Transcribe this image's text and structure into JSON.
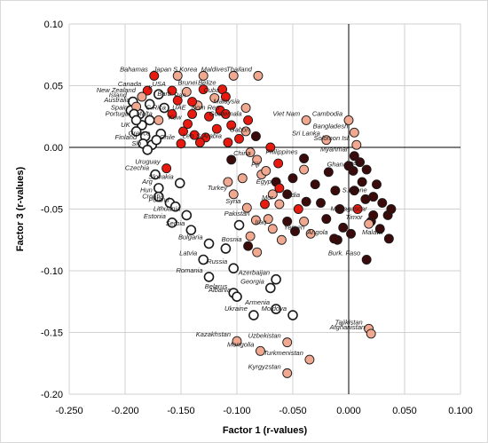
{
  "chart_data": {
    "type": "scatter",
    "xlabel": "Factor 1 (r-values)",
    "ylabel": "Factor 3 (r-values)",
    "xlim": [
      -0.25,
      0.1
    ],
    "ylim": [
      -0.2,
      0.1
    ],
    "x_ticks": [
      "-0.250",
      "-0.200",
      "-0.150",
      "-0.100",
      "-0.050",
      "0.000",
      "0.050",
      "0.100"
    ],
    "y_ticks": [
      "0.10",
      "0.05",
      "0.00",
      "-0.05",
      "-0.10",
      "-0.15",
      "-0.20"
    ],
    "grid": true,
    "colors": {
      "open": "#ffffff",
      "red": "#e8190f",
      "pink": "#f0a990",
      "dark": "#3b0a0a",
      "edge": "#1a1a1a"
    },
    "labeled_points": [
      {
        "label": "Bahamas",
        "x": -0.174,
        "y": 0.058,
        "style": "red"
      },
      {
        "label": "Japan",
        "x": -0.153,
        "y": 0.058,
        "style": "pink"
      },
      {
        "label": "S.Korea",
        "x": -0.13,
        "y": 0.058,
        "style": "pink"
      },
      {
        "label": "Maldives",
        "x": -0.103,
        "y": 0.058,
        "style": "pink"
      },
      {
        "label": "Thailand",
        "x": -0.081,
        "y": 0.058,
        "style": "pink"
      },
      {
        "label": "Canada",
        "x": -0.18,
        "y": 0.046,
        "style": "red"
      },
      {
        "label": "USA",
        "x": -0.158,
        "y": 0.046,
        "style": "red"
      },
      {
        "label": "Brunei",
        "x": -0.13,
        "y": 0.047,
        "style": "red"
      },
      {
        "label": "Belize",
        "x": -0.113,
        "y": 0.047,
        "style": "red"
      },
      {
        "label": "Cuba",
        "x": -0.11,
        "y": 0.041,
        "style": "red"
      },
      {
        "label": "New Zealand",
        "x": -0.185,
        "y": 0.041,
        "style": "pink"
      },
      {
        "label": "Island",
        "x": -0.193,
        "y": 0.037,
        "style": "open"
      },
      {
        "label": "Ir",
        "x": -0.17,
        "y": 0.043,
        "style": "open"
      },
      {
        "label": "Barb",
        "x": -0.153,
        "y": 0.038,
        "style": "red"
      },
      {
        "label": "Pan",
        "x": -0.14,
        "y": 0.037,
        "style": "red"
      },
      {
        "label": "Australia",
        "x": -0.19,
        "y": 0.033,
        "style": "pink"
      },
      {
        "label": "Malaysia",
        "x": -0.092,
        "y": 0.032,
        "style": "pink"
      },
      {
        "label": "Spain",
        "x": -0.192,
        "y": 0.027,
        "style": "open"
      },
      {
        "label": "C.Rica",
        "x": -0.158,
        "y": 0.027,
        "style": "red"
      },
      {
        "label": "UAE",
        "x": -0.14,
        "y": 0.027,
        "style": "red"
      },
      {
        "label": "Dom Rep",
        "x": -0.11,
        "y": 0.027,
        "style": "red"
      },
      {
        "label": "Portugal",
        "x": -0.19,
        "y": 0.022,
        "style": "open"
      },
      {
        "label": "Malta",
        "x": -0.17,
        "y": 0.022,
        "style": "pink"
      },
      {
        "label": "Guatemala",
        "x": -0.09,
        "y": 0.022,
        "style": "red"
      },
      {
        "label": "Viet Nam",
        "x": -0.038,
        "y": 0.022,
        "style": "pink"
      },
      {
        "label": "Cambodia",
        "x": 0.0,
        "y": 0.022,
        "style": "pink"
      },
      {
        "label": "Kuw",
        "x": -0.144,
        "y": 0.019,
        "style": "red"
      },
      {
        "label": "UK",
        "x": -0.19,
        "y": 0.013,
        "style": "open"
      },
      {
        "label": "Gabon",
        "x": -0.083,
        "y": 0.009,
        "style": "dark"
      },
      {
        "label": "Bangladesh",
        "x": 0.005,
        "y": 0.012,
        "style": "pink"
      },
      {
        "label": "Greece",
        "x": -0.172,
        "y": 0.006,
        "style": "open"
      },
      {
        "label": "Sri Lanka",
        "x": -0.02,
        "y": 0.006,
        "style": "pink"
      },
      {
        "label": "Solomon Isl.",
        "x": 0.007,
        "y": 0.002,
        "style": "pink"
      },
      {
        "label": "Finland",
        "x": -0.184,
        "y": 0.003,
        "style": "open"
      },
      {
        "label": "Chile",
        "x": -0.15,
        "y": 0.003,
        "style": "red"
      },
      {
        "label": "Leb",
        "x": -0.133,
        "y": 0.004,
        "style": "red"
      },
      {
        "label": "S.Arabia",
        "x": -0.108,
        "y": 0.004,
        "style": "red"
      },
      {
        "label": "Slo",
        "x": -0.18,
        "y": -0.002,
        "style": "open"
      },
      {
        "label": "Myanmar",
        "x": 0.005,
        "y": -0.007,
        "style": "dark"
      },
      {
        "label": "Philippines",
        "x": -0.04,
        "y": -0.009,
        "style": "dark"
      },
      {
        "label": "China",
        "x": -0.082,
        "y": -0.01,
        "style": "pink"
      },
      {
        "label": "Uruguay",
        "x": -0.163,
        "y": -0.017,
        "style": "red"
      },
      {
        "label": "Ghana",
        "x": 0.004,
        "y": -0.019,
        "style": "dark"
      },
      {
        "label": "Laos",
        "x": 0.016,
        "y": -0.018,
        "style": "dark"
      },
      {
        "label": "Fiji",
        "x": -0.074,
        "y": -0.019,
        "style": "pink"
      },
      {
        "label": "Czechia",
        "x": -0.173,
        "y": -0.022,
        "style": "open"
      },
      {
        "label": "Slovakia",
        "x": -0.151,
        "y": -0.029,
        "style": "open"
      },
      {
        "label": "Arg",
        "x": -0.17,
        "y": -0.033,
        "style": "open"
      },
      {
        "label": "Egypt",
        "x": -0.062,
        "y": -0.033,
        "style": "red"
      },
      {
        "label": "S.Leone",
        "x": 0.022,
        "y": -0.04,
        "style": "dark"
      },
      {
        "label": "Turkey",
        "x": -0.103,
        "y": -0.038,
        "style": "pink"
      },
      {
        "label": "Hun",
        "x": -0.17,
        "y": -0.04,
        "style": "open"
      },
      {
        "label": "Croatia",
        "x": -0.16,
        "y": -0.045,
        "style": "open"
      },
      {
        "label": "Poland",
        "x": -0.155,
        "y": -0.048,
        "style": "open"
      },
      {
        "label": "India",
        "x": -0.038,
        "y": -0.044,
        "style": "dark"
      },
      {
        "label": "Mor",
        "x": -0.062,
        "y": -0.046,
        "style": "pink"
      },
      {
        "label": "Syria",
        "x": -0.091,
        "y": -0.049,
        "style": "pink"
      },
      {
        "label": "Madagascar",
        "x": 0.022,
        "y": -0.055,
        "style": "dark"
      },
      {
        "label": "Lithuania",
        "x": -0.145,
        "y": -0.055,
        "style": "open"
      },
      {
        "label": "Pakistan",
        "x": -0.083,
        "y": -0.059,
        "style": "pink"
      },
      {
        "label": "Timor",
        "x": 0.018,
        "y": -0.062,
        "style": "pink"
      },
      {
        "label": "Estonia",
        "x": -0.158,
        "y": -0.061,
        "style": "open"
      },
      {
        "label": "Serbia",
        "x": -0.141,
        "y": -0.067,
        "style": "open"
      },
      {
        "label": "Iraq",
        "x": -0.068,
        "y": -0.066,
        "style": "pink"
      },
      {
        "label": "Yemen",
        "x": -0.034,
        "y": -0.07,
        "style": "pink"
      },
      {
        "label": "Angola",
        "x": -0.013,
        "y": -0.074,
        "style": "dark"
      },
      {
        "label": "Bulgaria",
        "x": -0.125,
        "y": -0.078,
        "style": "open"
      },
      {
        "label": "Malawi",
        "x": 0.036,
        "y": -0.074,
        "style": "dark"
      },
      {
        "label": "Bosnia",
        "x": -0.09,
        "y": -0.08,
        "style": "dark"
      },
      {
        "label": "Latvia",
        "x": -0.13,
        "y": -0.091,
        "style": "open"
      },
      {
        "label": "Burk. Faso",
        "x": 0.016,
        "y": -0.091,
        "style": "dark"
      },
      {
        "label": "Russia",
        "x": -0.103,
        "y": -0.098,
        "style": "open"
      },
      {
        "label": "Romania",
        "x": -0.125,
        "y": -0.105,
        "style": "open"
      },
      {
        "label": "Azerbaijan",
        "x": -0.065,
        "y": -0.107,
        "style": "open"
      },
      {
        "label": "Georgia",
        "x": -0.07,
        "y": -0.114,
        "style": "open"
      },
      {
        "label": "Belarus",
        "x": -0.103,
        "y": -0.118,
        "style": "open"
      },
      {
        "label": "Albania",
        "x": -0.1,
        "y": -0.121,
        "style": "open"
      },
      {
        "label": "Armenia",
        "x": -0.065,
        "y": -0.131,
        "style": "open"
      },
      {
        "label": "Moldova",
        "x": -0.05,
        "y": -0.136,
        "style": "open"
      },
      {
        "label": "Ukraine",
        "x": -0.085,
        "y": -0.136,
        "style": "open"
      },
      {
        "label": "Tajikistan",
        "x": 0.018,
        "y": -0.147,
        "style": "pink"
      },
      {
        "label": "Kazakhstan",
        "x": -0.1,
        "y": -0.157,
        "style": "pink"
      },
      {
        "label": "Uzbekistan",
        "x": -0.055,
        "y": -0.158,
        "style": "pink"
      },
      {
        "label": "Afghanistan",
        "x": 0.02,
        "y": -0.151,
        "style": "pink"
      },
      {
        "label": "Mongolia",
        "x": -0.079,
        "y": -0.165,
        "style": "pink"
      },
      {
        "label": "Turkmenistan",
        "x": -0.035,
        "y": -0.172,
        "style": "pink"
      },
      {
        "label": "Kyrgyzstan",
        "x": -0.055,
        "y": -0.183,
        "style": "pink"
      }
    ],
    "unlabeled_points": [
      {
        "x": -0.195,
        "y": 0.03,
        "style": "open"
      },
      {
        "x": -0.187,
        "y": 0.027,
        "style": "open"
      },
      {
        "x": -0.185,
        "y": 0.018,
        "style": "open"
      },
      {
        "x": -0.178,
        "y": 0.022,
        "style": "open"
      },
      {
        "x": -0.182,
        "y": 0.009,
        "style": "open"
      },
      {
        "x": -0.176,
        "y": 0.002,
        "style": "open"
      },
      {
        "x": -0.165,
        "y": 0.032,
        "style": "open"
      },
      {
        "x": -0.168,
        "y": 0.011,
        "style": "open"
      },
      {
        "x": -0.178,
        "y": 0.035,
        "style": "open"
      },
      {
        "x": -0.145,
        "y": 0.045,
        "style": "pink"
      },
      {
        "x": -0.135,
        "y": 0.034,
        "style": "pink"
      },
      {
        "x": -0.12,
        "y": 0.04,
        "style": "pink"
      },
      {
        "x": -0.125,
        "y": 0.025,
        "style": "red"
      },
      {
        "x": -0.148,
        "y": 0.013,
        "style": "red"
      },
      {
        "x": -0.138,
        "y": 0.01,
        "style": "red"
      },
      {
        "x": -0.128,
        "y": 0.008,
        "style": "red"
      },
      {
        "x": -0.118,
        "y": 0.015,
        "style": "red"
      },
      {
        "x": -0.115,
        "y": 0.03,
        "style": "red"
      },
      {
        "x": -0.105,
        "y": 0.018,
        "style": "red"
      },
      {
        "x": -0.098,
        "y": 0.007,
        "style": "red"
      },
      {
        "x": -0.092,
        "y": 0.013,
        "style": "pink"
      },
      {
        "x": -0.07,
        "y": 0.0,
        "style": "red"
      },
      {
        "x": -0.105,
        "y": -0.01,
        "style": "dark"
      },
      {
        "x": -0.088,
        "y": -0.004,
        "style": "pink"
      },
      {
        "x": -0.078,
        "y": -0.022,
        "style": "pink"
      },
      {
        "x": -0.095,
        "y": -0.025,
        "style": "pink"
      },
      {
        "x": -0.108,
        "y": -0.028,
        "style": "pink"
      },
      {
        "x": -0.068,
        "y": -0.038,
        "style": "pink"
      },
      {
        "x": -0.075,
        "y": -0.046,
        "style": "red"
      },
      {
        "x": -0.055,
        "y": -0.038,
        "style": "dark"
      },
      {
        "x": -0.05,
        "y": -0.025,
        "style": "dark"
      },
      {
        "x": -0.045,
        "y": -0.05,
        "style": "red"
      },
      {
        "x": -0.055,
        "y": -0.06,
        "style": "dark"
      },
      {
        "x": -0.048,
        "y": -0.068,
        "style": "dark"
      },
      {
        "x": -0.03,
        "y": -0.03,
        "style": "dark"
      },
      {
        "x": -0.025,
        "y": -0.045,
        "style": "dark"
      },
      {
        "x": -0.02,
        "y": -0.058,
        "style": "dark"
      },
      {
        "x": -0.018,
        "y": -0.02,
        "style": "dark"
      },
      {
        "x": -0.012,
        "y": -0.035,
        "style": "dark"
      },
      {
        "x": -0.008,
        "y": -0.05,
        "style": "dark"
      },
      {
        "x": -0.005,
        "y": -0.065,
        "style": "dark"
      },
      {
        "x": 0.0,
        "y": -0.015,
        "style": "dark"
      },
      {
        "x": 0.005,
        "y": -0.035,
        "style": "dark"
      },
      {
        "x": 0.008,
        "y": -0.05,
        "style": "red"
      },
      {
        "x": 0.012,
        "y": -0.028,
        "style": "dark"
      },
      {
        "x": 0.015,
        "y": -0.042,
        "style": "dark"
      },
      {
        "x": 0.02,
        "y": -0.06,
        "style": "dark"
      },
      {
        "x": 0.025,
        "y": -0.03,
        "style": "dark"
      },
      {
        "x": 0.03,
        "y": -0.045,
        "style": "dark"
      },
      {
        "x": 0.035,
        "y": -0.055,
        "style": "dark"
      },
      {
        "x": 0.038,
        "y": -0.05,
        "style": "dark"
      },
      {
        "x": 0.028,
        "y": -0.066,
        "style": "dark"
      },
      {
        "x": -0.01,
        "y": -0.075,
        "style": "dark"
      },
      {
        "x": 0.002,
        "y": -0.07,
        "style": "dark"
      },
      {
        "x": -0.04,
        "y": -0.06,
        "style": "pink"
      },
      {
        "x": -0.06,
        "y": -0.075,
        "style": "pink"
      },
      {
        "x": -0.072,
        "y": -0.058,
        "style": "pink"
      },
      {
        "x": -0.065,
        "y": -0.028,
        "style": "dark"
      },
      {
        "x": -0.04,
        "y": -0.018,
        "style": "pink"
      },
      {
        "x": -0.098,
        "y": -0.063,
        "style": "open"
      },
      {
        "x": -0.088,
        "y": -0.072,
        "style": "pink"
      },
      {
        "x": -0.082,
        "y": -0.085,
        "style": "pink"
      },
      {
        "x": -0.11,
        "y": -0.082,
        "style": "open"
      },
      {
        "x": -0.063,
        "y": -0.013,
        "style": "red"
      },
      {
        "x": 0.01,
        "y": -0.012,
        "style": "dark"
      }
    ]
  }
}
